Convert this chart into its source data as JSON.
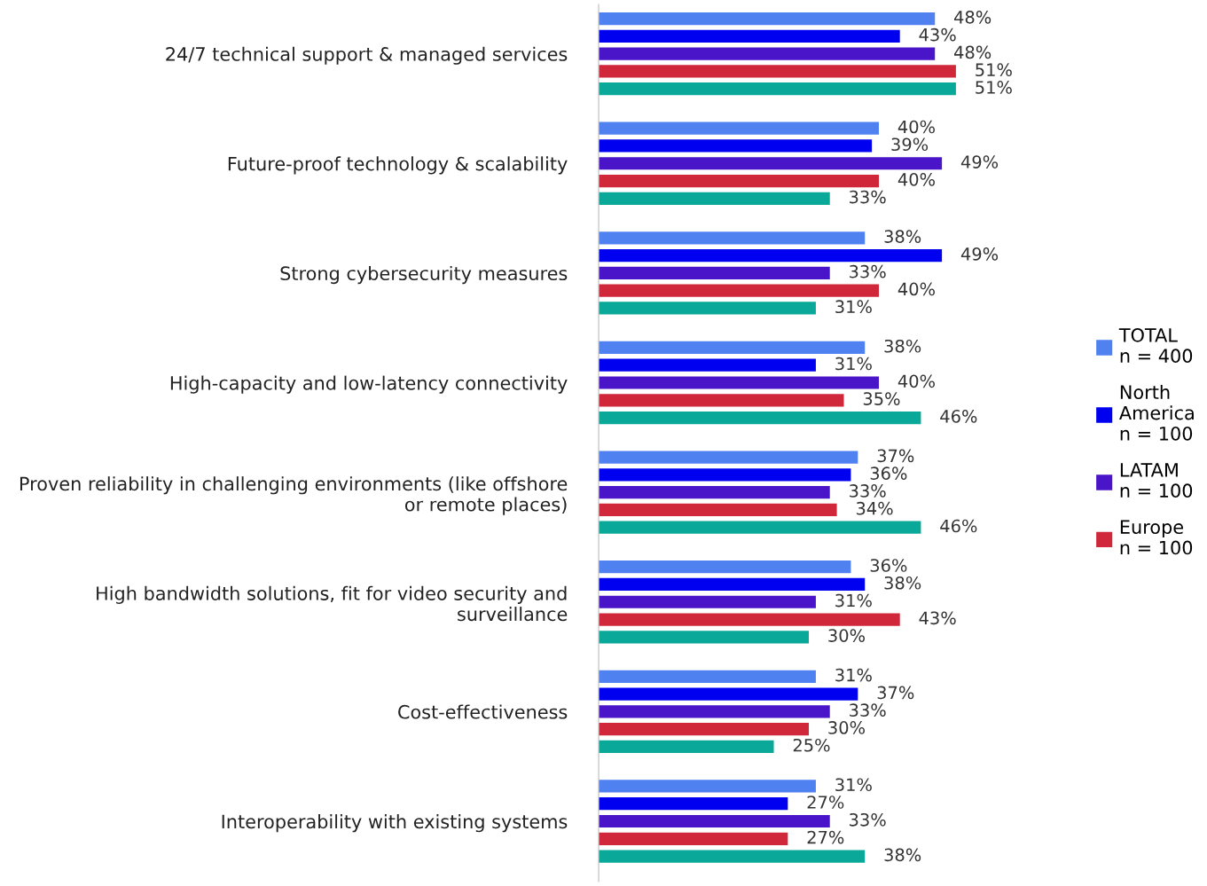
{
  "chart_data": {
    "type": "bar",
    "orientation": "horizontal",
    "legend": "right",
    "grid": false,
    "categories": [
      "24/7 technical support & managed services",
      "Future-proof technology & scalability",
      "Strong cybersecurity measures",
      "High-capacity and low-latency connectivity",
      "Proven reliability in challenging environments (like offshore\nor remote places)",
      "High bandwidth solutions, fit for video security and\nsurveillance",
      "Cost-effectiveness",
      "Interoperability with existing systems"
    ],
    "series": [
      {
        "name": "TOTAL\nn = 400",
        "color": "#4f81f0",
        "values": [
          48,
          40,
          38,
          38,
          37,
          36,
          31,
          31
        ],
        "value_labels": [
          "48%",
          "40%",
          "38%",
          "38%",
          "37%",
          "36%",
          "31%",
          "31%"
        ]
      },
      {
        "name": "North\nAmerica\nn = 100",
        "color": "#0000f0",
        "values": [
          43,
          39,
          49,
          31,
          36,
          38,
          37,
          27
        ],
        "value_labels": [
          "43%",
          "39%",
          "49%",
          "31%",
          "36%",
          "38%",
          "37%",
          "27%"
        ]
      },
      {
        "name": "LATAM\nn = 100",
        "color": "#4a14c8",
        "values": [
          48,
          49,
          33,
          40,
          33,
          31,
          33,
          33
        ],
        "value_labels": [
          "48%",
          "49%",
          "33%",
          "40%",
          "33%",
          "31%",
          "33%",
          "33%"
        ]
      },
      {
        "name": "Europe\nn = 100",
        "color": "#d0283a",
        "values": [
          51,
          40,
          40,
          35,
          34,
          43,
          30,
          27
        ],
        "value_labels": [
          "51%",
          "40%",
          "40%",
          "35%",
          "34%",
          "43%",
          "30%",
          "27%"
        ]
      },
      {
        "color": "#0aa898",
        "values": [
          51,
          33,
          31,
          46,
          46,
          30,
          25,
          38
        ],
        "value_labels": [
          "51%",
          "33%",
          "31%",
          "46%",
          "46%",
          "30%",
          "25%",
          "38%"
        ]
      }
    ]
  }
}
